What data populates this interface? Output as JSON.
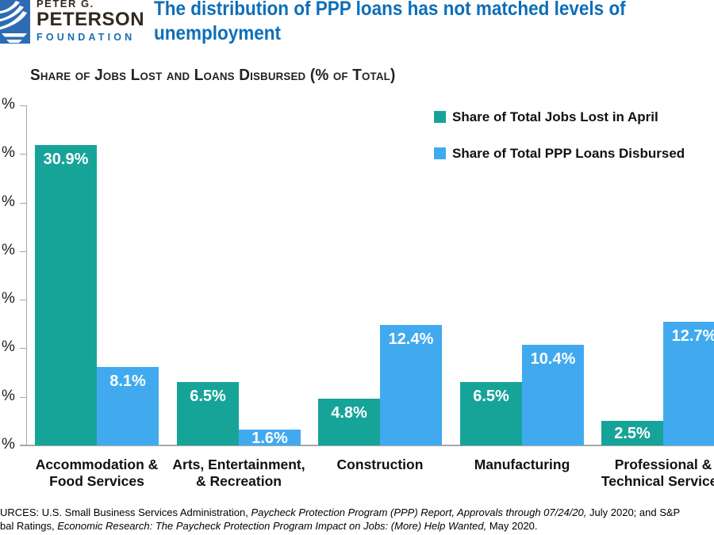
{
  "header": {
    "logo": {
      "line1": "PETER G.",
      "line2": "PETERSON",
      "line3": "FOUNDATION",
      "mark_color": "#2d6cb4"
    },
    "title_line1": "The distribution of PPP loans has not matched levels of",
    "title_line2": "unemployment",
    "title_color": "#0d6eb8"
  },
  "subtitle": "Share of Jobs Lost and Loans Disbursed (% of Total)",
  "legend": [
    {
      "label": "Share of Total Jobs Lost in April",
      "color": "#16a499"
    },
    {
      "label": "Share of Total PPP Loans Disbursed",
      "color": "#41aaef"
    }
  ],
  "chart_data": {
    "type": "bar",
    "title": "Share of Jobs Lost and Loans Disbursed (% of Total)",
    "categories": [
      [
        "Accommodation &",
        "Food Services"
      ],
      [
        "Arts, Entertainment,",
        "& Recreation"
      ],
      [
        "Construction"
      ],
      [
        "Manufacturing"
      ],
      [
        "Professional &",
        "Technical Services"
      ]
    ],
    "series": [
      {
        "name": "Share of Total Jobs Lost in April",
        "color": "#16a499",
        "values": [
          30.9,
          6.5,
          4.8,
          6.5,
          2.5
        ]
      },
      {
        "name": "Share of Total PPP Loans Disbursed",
        "color": "#41aaef",
        "values": [
          8.1,
          1.6,
          12.4,
          10.4,
          12.7
        ]
      }
    ],
    "value_label_suffix": "%",
    "y_axis": {
      "min": 0,
      "max": 35,
      "tick_step": 5,
      "unit": "%",
      "tick_number_labels_clipped_offscreen": true
    },
    "legend_position": "top-right",
    "grid": false
  },
  "sources": {
    "line1": [
      {
        "t": "URCES: U.S. Small Business Services Administration, ",
        "i": false
      },
      {
        "t": "Paycheck Protection Program (PPP) Report, Approvals through 07/24/20,",
        "i": true
      },
      {
        "t": " July 2020; and S&P",
        "i": false
      }
    ],
    "line2": [
      {
        "t": "bal Ratings, ",
        "i": false
      },
      {
        "t": "Economic Research: The Paycheck Protection Program Impact on Jobs: (More) Help Wanted,",
        "i": true
      },
      {
        "t": " May 2020.",
        "i": false
      }
    ]
  }
}
